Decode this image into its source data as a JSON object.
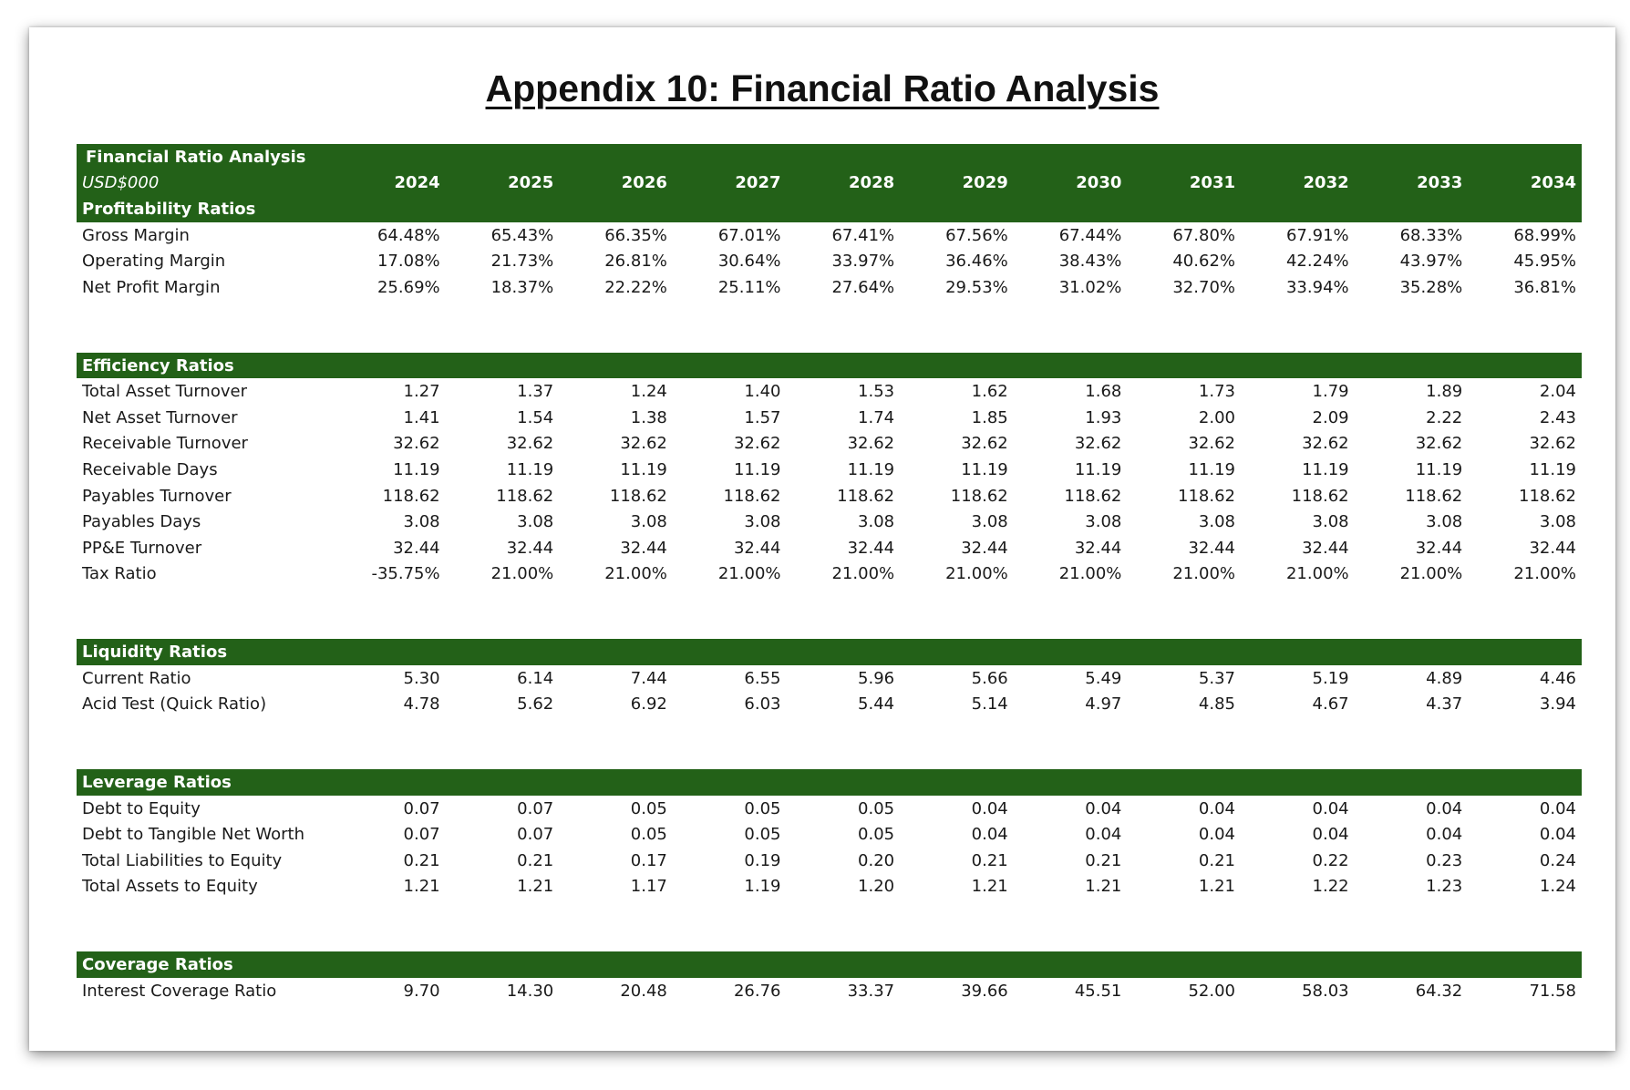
{
  "title": "Appendix 10: Financial Ratio Analysis",
  "table_heading": "Financial Ratio Analysis",
  "currency_unit": "USD$000",
  "years": [
    "2024",
    "2025",
    "2026",
    "2027",
    "2028",
    "2029",
    "2030",
    "2031",
    "2032",
    "2033",
    "2034"
  ],
  "sections": [
    {
      "name": "Profitability Ratios",
      "rows": [
        {
          "label": "Gross Margin",
          "values": [
            "64.48%",
            "65.43%",
            "66.35%",
            "67.01%",
            "67.41%",
            "67.56%",
            "67.44%",
            "67.80%",
            "67.91%",
            "68.33%",
            "68.99%"
          ]
        },
        {
          "label": "Operating Margin",
          "values": [
            "17.08%",
            "21.73%",
            "26.81%",
            "30.64%",
            "33.97%",
            "36.46%",
            "38.43%",
            "40.62%",
            "42.24%",
            "43.97%",
            "45.95%"
          ]
        },
        {
          "label": "Net Profit Margin",
          "values": [
            "25.69%",
            "18.37%",
            "22.22%",
            "25.11%",
            "27.64%",
            "29.53%",
            "31.02%",
            "32.70%",
            "33.94%",
            "35.28%",
            "36.81%"
          ]
        }
      ]
    },
    {
      "name": "Efficiency Ratios",
      "rows": [
        {
          "label": "Total Asset Turnover",
          "values": [
            "1.27",
            "1.37",
            "1.24",
            "1.40",
            "1.53",
            "1.62",
            "1.68",
            "1.73",
            "1.79",
            "1.89",
            "2.04"
          ]
        },
        {
          "label": "Net Asset Turnover",
          "values": [
            "1.41",
            "1.54",
            "1.38",
            "1.57",
            "1.74",
            "1.85",
            "1.93",
            "2.00",
            "2.09",
            "2.22",
            "2.43"
          ]
        },
        {
          "label": "Receivable Turnover",
          "values": [
            "32.62",
            "32.62",
            "32.62",
            "32.62",
            "32.62",
            "32.62",
            "32.62",
            "32.62",
            "32.62",
            "32.62",
            "32.62"
          ]
        },
        {
          "label": "Receivable Days",
          "values": [
            "11.19",
            "11.19",
            "11.19",
            "11.19",
            "11.19",
            "11.19",
            "11.19",
            "11.19",
            "11.19",
            "11.19",
            "11.19"
          ]
        },
        {
          "label": "Payables Turnover",
          "values": [
            "118.62",
            "118.62",
            "118.62",
            "118.62",
            "118.62",
            "118.62",
            "118.62",
            "118.62",
            "118.62",
            "118.62",
            "118.62"
          ]
        },
        {
          "label": "Payables Days",
          "values": [
            "3.08",
            "3.08",
            "3.08",
            "3.08",
            "3.08",
            "3.08",
            "3.08",
            "3.08",
            "3.08",
            "3.08",
            "3.08"
          ]
        },
        {
          "label": "PP&E Turnover",
          "values": [
            "32.44",
            "32.44",
            "32.44",
            "32.44",
            "32.44",
            "32.44",
            "32.44",
            "32.44",
            "32.44",
            "32.44",
            "32.44"
          ]
        },
        {
          "label": "Tax Ratio",
          "values": [
            "-35.75%",
            "21.00%",
            "21.00%",
            "21.00%",
            "21.00%",
            "21.00%",
            "21.00%",
            "21.00%",
            "21.00%",
            "21.00%",
            "21.00%"
          ]
        }
      ]
    },
    {
      "name": "Liquidity Ratios",
      "rows": [
        {
          "label": "Current Ratio",
          "values": [
            "5.30",
            "6.14",
            "7.44",
            "6.55",
            "5.96",
            "5.66",
            "5.49",
            "5.37",
            "5.19",
            "4.89",
            "4.46"
          ]
        },
        {
          "label": "Acid Test (Quick Ratio)",
          "values": [
            "4.78",
            "5.62",
            "6.92",
            "6.03",
            "5.44",
            "5.14",
            "4.97",
            "4.85",
            "4.67",
            "4.37",
            "3.94"
          ]
        }
      ]
    },
    {
      "name": "Leverage Ratios",
      "rows": [
        {
          "label": "Debt to Equity",
          "values": [
            "0.07",
            "0.07",
            "0.05",
            "0.05",
            "0.05",
            "0.04",
            "0.04",
            "0.04",
            "0.04",
            "0.04",
            "0.04"
          ]
        },
        {
          "label": "Debt to Tangible Net Worth",
          "values": [
            "0.07",
            "0.07",
            "0.05",
            "0.05",
            "0.05",
            "0.04",
            "0.04",
            "0.04",
            "0.04",
            "0.04",
            "0.04"
          ]
        },
        {
          "label": "Total Liabilities to Equity",
          "values": [
            "0.21",
            "0.21",
            "0.17",
            "0.19",
            "0.20",
            "0.21",
            "0.21",
            "0.21",
            "0.22",
            "0.23",
            "0.24"
          ]
        },
        {
          "label": "Total Assets to Equity",
          "values": [
            "1.21",
            "1.21",
            "1.17",
            "1.19",
            "1.20",
            "1.21",
            "1.21",
            "1.21",
            "1.22",
            "1.23",
            "1.24"
          ]
        }
      ]
    },
    {
      "name": "Coverage Ratios",
      "rows": [
        {
          "label": "Interest Coverage Ratio",
          "values": [
            "9.70",
            "14.30",
            "20.48",
            "26.76",
            "33.37",
            "39.66",
            "45.51",
            "52.00",
            "58.03",
            "64.32",
            "71.58"
          ]
        }
      ]
    }
  ],
  "colors": {
    "band": "#236118",
    "band_text": "#ffffff",
    "text": "#1a1a1a"
  }
}
